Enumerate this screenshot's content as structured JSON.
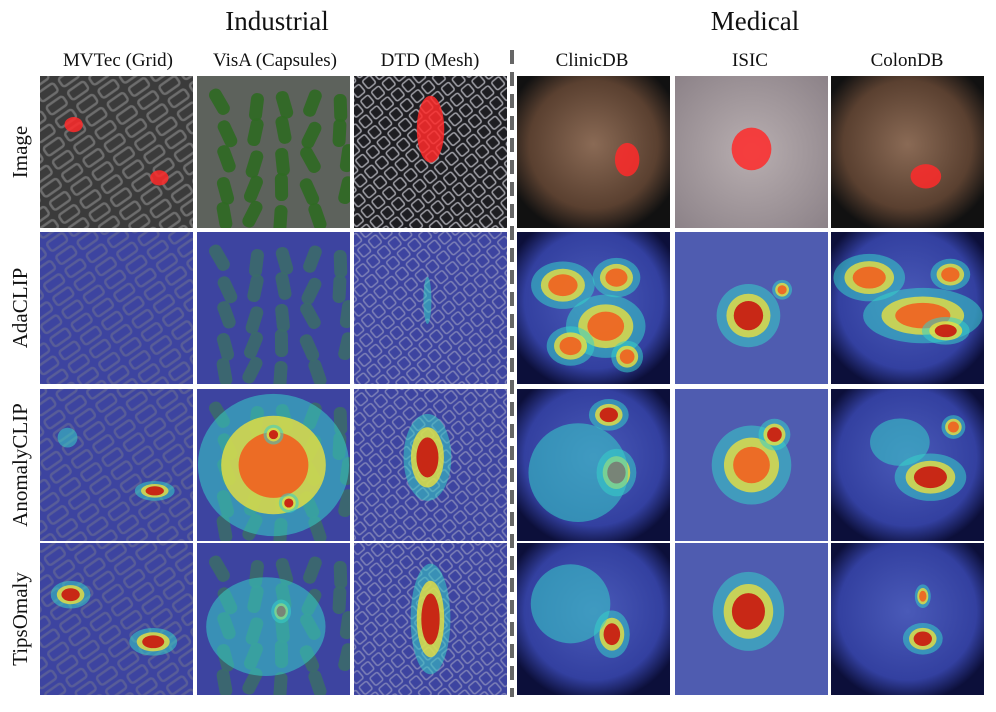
{
  "groups": [
    "Industrial",
    "Medical"
  ],
  "columns": [
    "MVTec (Grid)",
    "VisA (Capsules)",
    "DTD (Mesh)",
    "ClinicDB",
    "ISIC",
    "ColonDB"
  ],
  "rows": [
    "Image",
    "AdaCLIP",
    "AnomalyCLIP",
    "TipsOmaly"
  ]
}
